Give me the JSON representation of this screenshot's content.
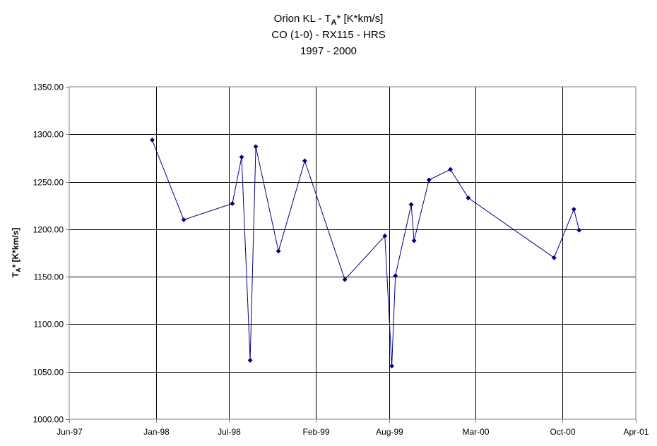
{
  "chart_data": {
    "type": "line",
    "title": {
      "line1_prefix": "Orion KL - T",
      "line1_sub": "A",
      "line1_suffix": "* [K*km/s]",
      "line2": "CO (1-0) - RX115 - HRS",
      "line3": "1997 - 2000"
    },
    "ylabel": {
      "prefix": "T",
      "sub": "A",
      "suffix": "* [K*km/s]"
    },
    "xlabel": "",
    "x_axis": {
      "type": "date",
      "range": [
        "1997-06-01",
        "2001-04-01"
      ],
      "tick_dates": [
        "1997-06-01",
        "1998-01-01",
        "1998-07-01",
        "1999-02-01",
        "1999-08-01",
        "2000-03-01",
        "2000-10-01",
        "2001-04-01"
      ],
      "tick_labels": [
        "Jun-97",
        "Jan-98",
        "Jul-98",
        "Feb-99",
        "Aug-99",
        "Mar-00",
        "Oct-00",
        "Apr-01"
      ]
    },
    "y_axis": {
      "range": [
        1000,
        1350
      ],
      "ticks": [
        1000,
        1050,
        1100,
        1150,
        1200,
        1250,
        1300,
        1350
      ],
      "tick_labels": [
        "1000.00",
        "1050.00",
        "1100.00",
        "1150.00",
        "1200.00",
        "1250.00",
        "1300.00",
        "1350.00"
      ]
    },
    "grid": true,
    "legend": "none",
    "colors": {
      "series": "#000080",
      "grid": "#000000",
      "axis": "#808080"
    },
    "series": [
      {
        "points": [
          {
            "x": "1997-12-23",
            "y": 1294
          },
          {
            "x": "1998-03-11",
            "y": 1210
          },
          {
            "x": "1998-07-09",
            "y": 1227
          },
          {
            "x": "1998-08-01",
            "y": 1276
          },
          {
            "x": "1998-08-22",
            "y": 1062
          },
          {
            "x": "1998-09-05",
            "y": 1287
          },
          {
            "x": "1998-10-31",
            "y": 1177
          },
          {
            "x": "1999-01-04",
            "y": 1272
          },
          {
            "x": "1999-04-13",
            "y": 1147
          },
          {
            "x": "1999-07-21",
            "y": 1193
          },
          {
            "x": "1999-08-07",
            "y": 1056
          },
          {
            "x": "1999-08-16",
            "y": 1151
          },
          {
            "x": "1999-09-24",
            "y": 1226
          },
          {
            "x": "1999-10-01",
            "y": 1188
          },
          {
            "x": "1999-11-07",
            "y": 1252
          },
          {
            "x": "1999-12-30",
            "y": 1263
          },
          {
            "x": "2000-02-12",
            "y": 1233
          },
          {
            "x": "2000-09-11",
            "y": 1170
          },
          {
            "x": "2000-10-30",
            "y": 1221
          },
          {
            "x": "2000-11-12",
            "y": 1199
          }
        ]
      }
    ]
  }
}
